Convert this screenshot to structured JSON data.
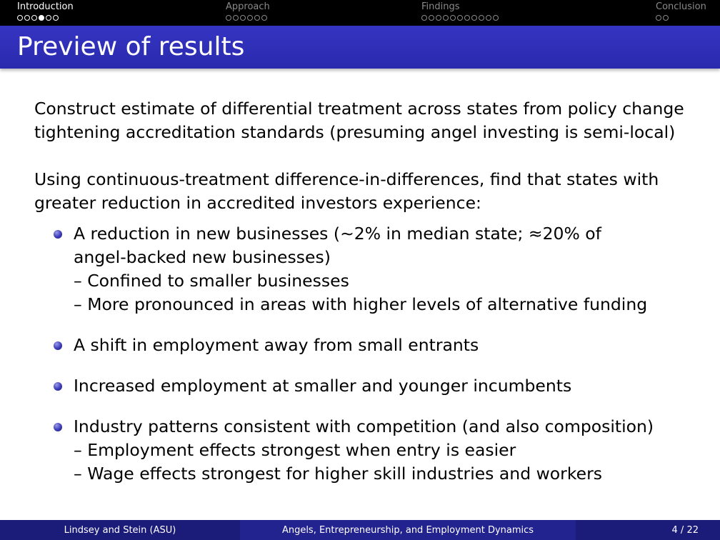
{
  "nav": {
    "sections": [
      {
        "title": "Introduction",
        "active": true,
        "dots": 6,
        "current_dot": 4
      },
      {
        "title": "Approach",
        "active": false,
        "dots": 6
      },
      {
        "title": "Findings",
        "active": false,
        "dots": 11
      },
      {
        "title": "Conclusion",
        "active": false,
        "dots": 2
      }
    ]
  },
  "frame": {
    "title": "Preview of results"
  },
  "content": {
    "para1": {
      "line1": "Construct estimate of differential treatment across states from policy change",
      "line2": "tightening accreditation standards (presuming angel investing is semi-local)"
    },
    "para2": {
      "line1": "Using continuous-treatment difference-in-differences, find that states with",
      "line2": "greater reduction in accredited investors experience:"
    },
    "bullets": [
      {
        "line1": "A reduction in new businesses (∼2% in median state; ≈20% of",
        "line2": "angel-backed new businesses)",
        "subs": [
          "– Confined to smaller businesses",
          "– More pronounced in areas with higher levels of alternative funding"
        ]
      },
      {
        "line1": "A shift in employment away from small entrants"
      },
      {
        "line1": "Increased employment at smaller and younger incumbents"
      },
      {
        "line1": "Industry patterns consistent with competition (and also composition)",
        "subs": [
          "– Employment effects strongest when entry is easier",
          "– Wage effects strongest for higher skill industries and workers"
        ]
      }
    ]
  },
  "footer": {
    "authors": "Lindsey and Stein (ASU)",
    "talk_title": "Angels, Entrepreneurship, and Employment Dynamics",
    "page": "4 / 22"
  },
  "colors": {
    "navbar_bg": "#000000",
    "title_bg": "#2f2fb8",
    "footer_dark": "#1b1b7a",
    "footer_mid": "#23238f"
  }
}
